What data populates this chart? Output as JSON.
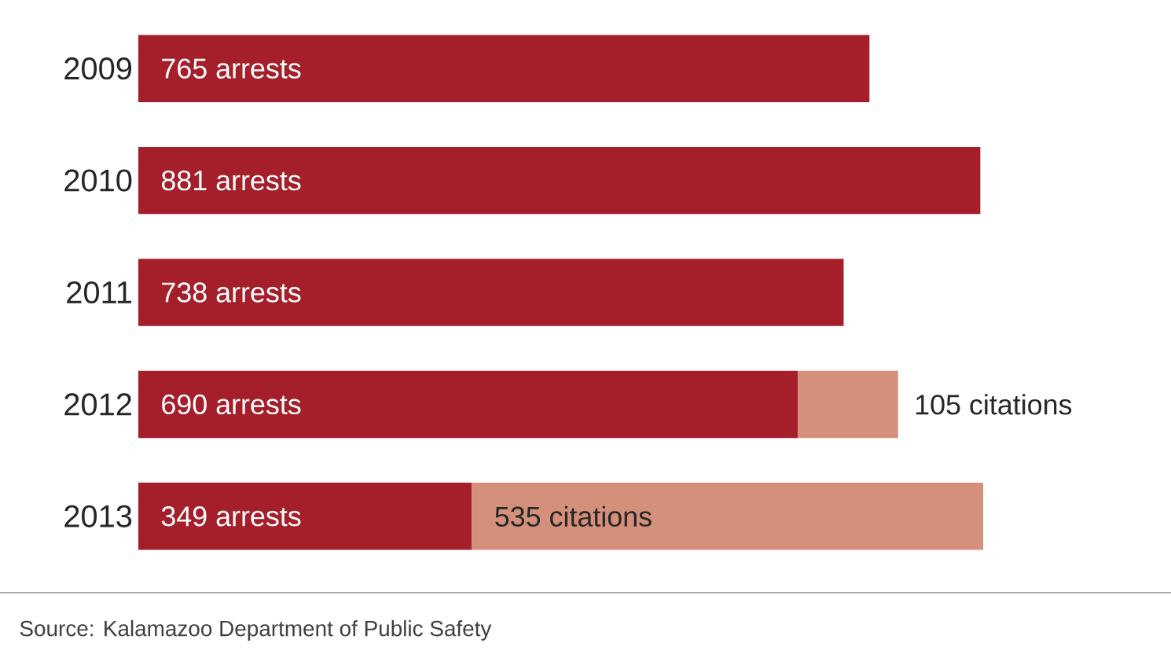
{
  "chart_data": {
    "type": "bar",
    "orientation": "horizontal",
    "stacked": true,
    "categories": [
      "2009",
      "2010",
      "2011",
      "2012",
      "2013"
    ],
    "series": [
      {
        "color": "#a51f2b",
        "values": [
          765,
          881,
          738,
          690,
          349
        ],
        "value_labels": [
          "765 arrests",
          "881 arrests",
          "738 arrests",
          "690 arrests",
          "349 arrests"
        ]
      },
      {
        "color": "#d4907b",
        "values": [
          null,
          null,
          null,
          105,
          535
        ],
        "value_labels": [
          null,
          null,
          null,
          "105 citations",
          "535 citations"
        ]
      }
    ],
    "annotations": [
      "Source: Kalamazoo Department of Public Safety"
    ]
  }
}
